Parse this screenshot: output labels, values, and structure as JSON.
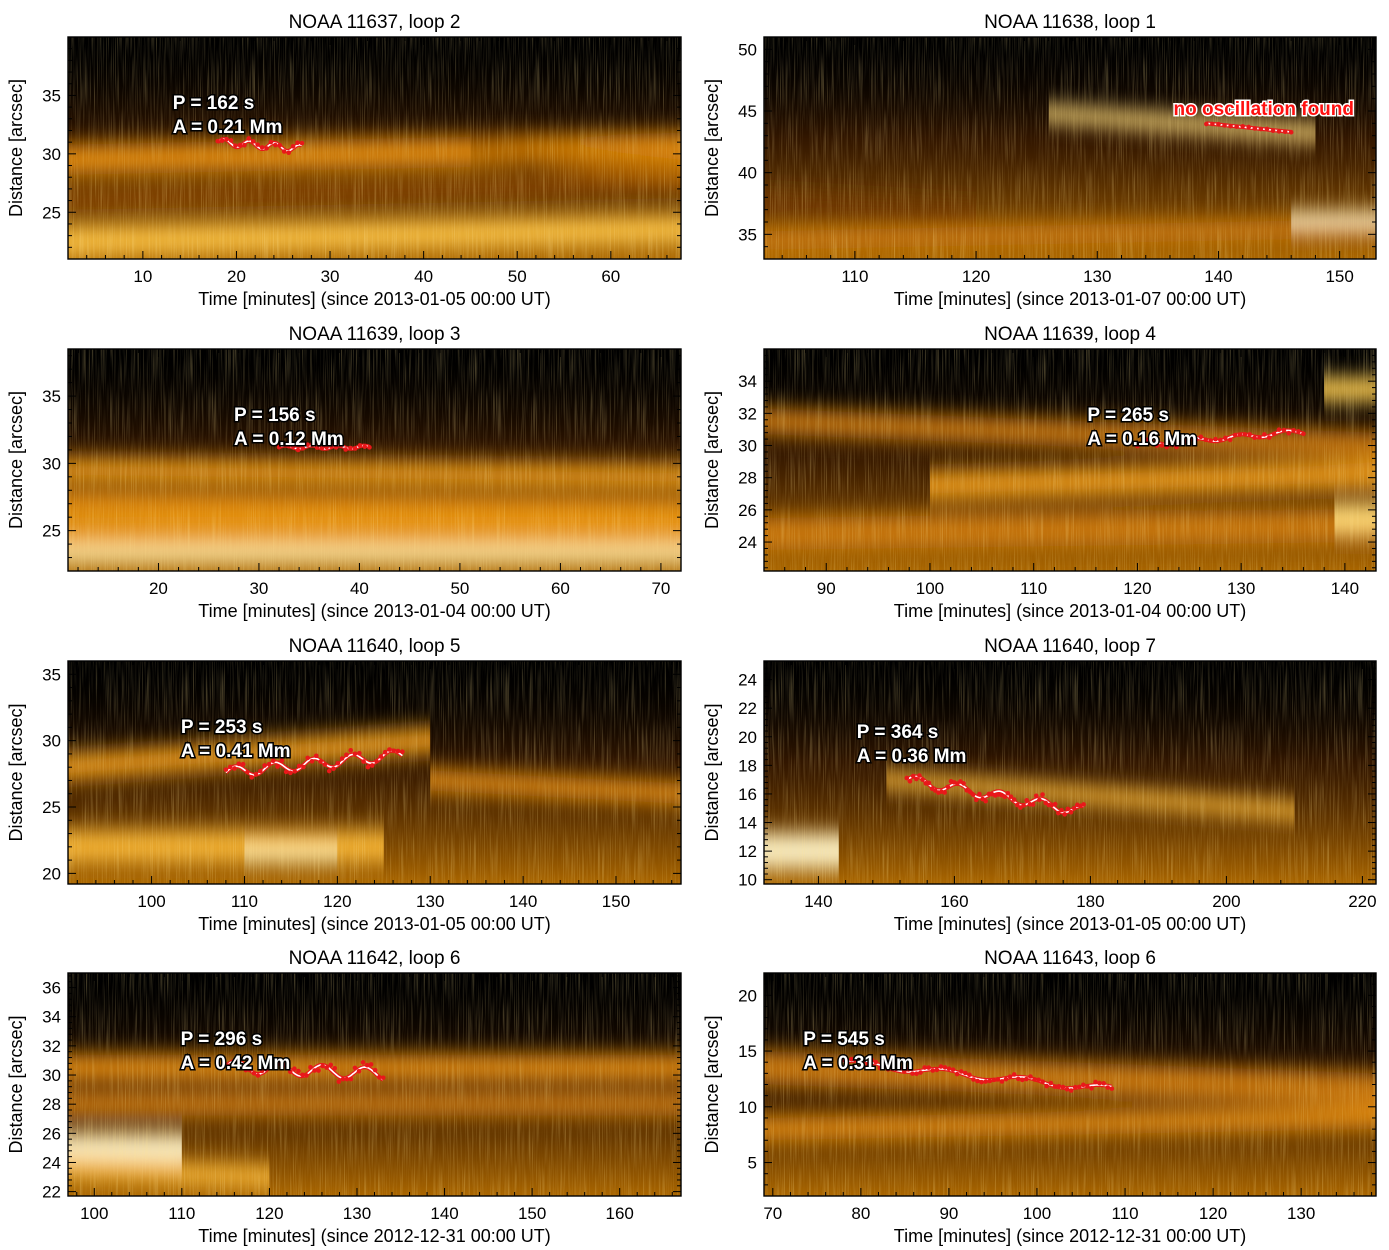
{
  "chart_data": [
    {
      "type": "time-distance map",
      "title": "NOAA 11637, loop 2",
      "xlabel": "Time [minutes] (since 2013-01-05 00:00 UT)",
      "ylabel": "Distance [arcsec]",
      "xlim": [
        2,
        67.5
      ],
      "ylim": [
        21,
        40
      ],
      "xticks": [
        10,
        20,
        30,
        40,
        50,
        60
      ],
      "yticks": [
        25,
        30,
        35
      ],
      "annotation": [
        "P =  162 s",
        "A = 0.21 Mm"
      ],
      "fit": {
        "t0": 18,
        "t1": 27,
        "y0": 31.0,
        "slope": -0.06,
        "amplitude": 0.3,
        "period_min": 2.7
      },
      "bands": [
        {
          "y0": 29.5,
          "y1": 30.5,
          "width": 2.6,
          "intensity": 0.55
        },
        {
          "y0": 22.5,
          "y1": 23.5,
          "width": 2.5,
          "intensity": 0.75
        },
        {
          "y0": 26,
          "y1": 27.5,
          "width": 2.0,
          "intensity": 0.35
        },
        {
          "y0": 30.5,
          "y1": 28.5,
          "width": 2.0,
          "intensity": 0.45,
          "x0": 45,
          "x1": 67.5
        }
      ]
    },
    {
      "type": "time-distance map",
      "title": "NOAA 11638, loop 1",
      "xlabel": "Time [minutes] (since 2013-01-07 00:00 UT)",
      "ylabel": "Distance [arcsec]",
      "xlim": [
        102.5,
        153
      ],
      "ylim": [
        33,
        51
      ],
      "xticks": [
        110,
        120,
        130,
        140,
        150
      ],
      "yticks": [
        35,
        40,
        45,
        50
      ],
      "annotation_red": "no oscillation found",
      "fit": {
        "t0": 139,
        "t1": 146,
        "y0": 44.0,
        "slope": -0.1,
        "amplitude": 0.0,
        "period_min": 3
      },
      "bands": [
        {
          "y0": 44.8,
          "y1": 43.2,
          "width": 1.3,
          "intensity": 0.85,
          "x0": 126,
          "x1": 148
        },
        {
          "y0": 34.5,
          "y1": 35.5,
          "width": 1.6,
          "intensity": 0.5
        },
        {
          "y0": 37.5,
          "y1": 36.5,
          "width": 1.5,
          "intensity": 0.3,
          "x0": 102.5,
          "x1": 120
        },
        {
          "y0": 36.2,
          "y1": 36.2,
          "width": 1.2,
          "intensity": 0.95,
          "x0": 146,
          "x1": 153
        }
      ]
    },
    {
      "type": "time-distance map",
      "title": "NOAA 11639, loop 3",
      "xlabel": "Time [minutes] (since 2013-01-04 00:00 UT)",
      "ylabel": "Distance [arcsec]",
      "xlim": [
        11,
        72
      ],
      "ylim": [
        22,
        38.5
      ],
      "xticks": [
        20,
        30,
        40,
        50,
        60,
        70
      ],
      "yticks": [
        25,
        30,
        35
      ],
      "annotation": [
        "P =  156 s",
        "A = 0.12 Mm"
      ],
      "fit": {
        "t0": 32,
        "t1": 41,
        "y0": 31.2,
        "slope": 0.0,
        "amplitude": 0.12,
        "period_min": 2.6
      },
      "bands": [
        {
          "y0": 29.5,
          "y1": 29.0,
          "width": 1.8,
          "intensity": 0.6
        },
        {
          "y0": 27.0,
          "y1": 26.5,
          "width": 1.8,
          "intensity": 0.55
        },
        {
          "y0": 23.3,
          "y1": 23.3,
          "width": 1.6,
          "intensity": 0.9
        },
        {
          "y0": 25.0,
          "y1": 25.0,
          "width": 2.0,
          "intensity": 0.6
        }
      ]
    },
    {
      "type": "time-distance map",
      "title": "NOAA 11639, loop 4",
      "xlabel": "Time [minutes] (since 2013-01-04 00:00 UT)",
      "ylabel": "Distance [arcsec]",
      "xlim": [
        84,
        143
      ],
      "ylim": [
        22.2,
        36
      ],
      "xticks": [
        90,
        100,
        110,
        120,
        130,
        140
      ],
      "yticks": [
        24,
        26,
        28,
        30,
        32,
        34
      ],
      "annotation": [
        "P =  265 s",
        "A = 0.16 Mm"
      ],
      "fit": {
        "t0": 120,
        "t1": 136,
        "y0": 30.0,
        "slope": 0.055,
        "amplitude": 0.15,
        "period_min": 4.4
      },
      "bands": [
        {
          "y0": 31.5,
          "y1": 30.0,
          "width": 1.6,
          "intensity": 0.5,
          "x0": 84,
          "x1": 143
        },
        {
          "y0": 27.5,
          "y1": 28.2,
          "width": 1.8,
          "intensity": 0.6,
          "x0": 100,
          "x1": 143
        },
        {
          "y0": 24.5,
          "y1": 25.0,
          "width": 2.0,
          "intensity": 0.5
        },
        {
          "y0": 33.5,
          "y1": 33.5,
          "width": 1.5,
          "intensity": 0.8,
          "x0": 138,
          "x1": 143
        },
        {
          "y0": 25.5,
          "y1": 25.5,
          "width": 1.8,
          "intensity": 0.85,
          "x0": 139,
          "x1": 143
        }
      ]
    },
    {
      "type": "time-distance map",
      "title": "NOAA 11640, loop 5",
      "xlabel": "Time [minutes] (since 2013-01-05 00:00 UT)",
      "ylabel": "Distance [arcsec]",
      "xlim": [
        91,
        157
      ],
      "ylim": [
        19.2,
        36
      ],
      "xticks": [
        100,
        110,
        120,
        130,
        140,
        150
      ],
      "yticks": [
        20,
        25,
        30,
        35
      ],
      "annotation": [
        "P =  253 s",
        "A = 0.41 Mm"
      ],
      "fit": {
        "t0": 108,
        "t1": 127,
        "y0": 27.6,
        "slope": 0.07,
        "amplitude": 0.4,
        "period_min": 4.2
      },
      "bands": [
        {
          "y0": 28.0,
          "y1": 30.0,
          "width": 2.0,
          "intensity": 0.6,
          "x0": 91,
          "x1": 130
        },
        {
          "y0": 27.0,
          "y1": 26.0,
          "width": 1.6,
          "intensity": 0.55,
          "x0": 130,
          "x1": 157
        },
        {
          "y0": 22.0,
          "y1": 22.0,
          "width": 2.5,
          "intensity": 0.7,
          "x0": 91,
          "x1": 125
        },
        {
          "y0": 21.5,
          "y1": 21.5,
          "width": 1.5,
          "intensity": 0.9,
          "x0": 110,
          "x1": 120
        }
      ]
    },
    {
      "type": "time-distance map",
      "title": "NOAA 11640, loop 7",
      "xlabel": "Time [minutes] (since 2013-01-05 00:00 UT)",
      "ylabel": "Distance [arcsec]",
      "xlim": [
        132,
        222
      ],
      "ylim": [
        9.7,
        25.3
      ],
      "xticks": [
        140,
        160,
        180,
        200,
        220
      ],
      "yticks": [
        10,
        12,
        14,
        16,
        18,
        20,
        22,
        24
      ],
      "annotation": [
        "P =  364 s",
        "A = 0.36 Mm"
      ],
      "fit": {
        "t0": 153,
        "t1": 179,
        "y0": 17.0,
        "slope": -0.085,
        "amplitude": 0.35,
        "period_min": 6.1
      },
      "bands": [
        {
          "y0": 17.0,
          "y1": 14.8,
          "width": 1.2,
          "intensity": 0.7,
          "x0": 150,
          "x1": 210
        },
        {
          "y0": 12.0,
          "y1": 12.0,
          "width": 2.5,
          "intensity": 0.95,
          "x0": 132,
          "x1": 143
        }
      ]
    },
    {
      "type": "time-distance map",
      "title": "NOAA 11642, loop 6",
      "xlabel": "Time [minutes] (since 2012-12-31 00:00 UT)",
      "ylabel": "Distance [arcsec]",
      "xlim": [
        97,
        167
      ],
      "ylim": [
        21.7,
        37
      ],
      "xticks": [
        100,
        110,
        120,
        130,
        140,
        150,
        160
      ],
      "yticks": [
        22,
        24,
        26,
        28,
        30,
        32,
        34,
        36
      ],
      "annotation": [
        "P =  296 s",
        "A = 0.42 Mm"
      ],
      "fit": {
        "t0": 115,
        "t1": 133,
        "y0": 30.6,
        "slope": -0.03,
        "amplitude": 0.42,
        "period_min": 4.9
      },
      "bands": [
        {
          "y0": 30.5,
          "y1": 30.5,
          "width": 1.8,
          "intensity": 0.55
        },
        {
          "y0": 28.0,
          "y1": 28.0,
          "width": 1.6,
          "intensity": 0.5
        },
        {
          "y0": 25.0,
          "y1": 25.0,
          "width": 2.0,
          "intensity": 0.95,
          "x0": 97,
          "x1": 110
        },
        {
          "y0": 23.5,
          "y1": 23.0,
          "width": 1.5,
          "intensity": 0.7,
          "x0": 97,
          "x1": 120
        }
      ]
    },
    {
      "type": "time-distance map",
      "title": "NOAA 11643, loop 6",
      "xlabel": "Time [minutes] (since 2012-12-31 00:00 UT)",
      "ylabel": "Distance [arcsec]",
      "xlim": [
        69,
        138.5
      ],
      "ylim": [
        2,
        22
      ],
      "xticks": [
        70,
        80,
        90,
        100,
        110,
        120,
        130
      ],
      "yticks": [
        5,
        10,
        15,
        20
      ],
      "annotation": [
        "P =  545 s",
        "A = 0.31 Mm"
      ],
      "fit": {
        "t0": 78,
        "t1": 108.5,
        "y0": 14.0,
        "slope": -0.08,
        "amplitude": 0.3,
        "period_min": 9.1
      },
      "bands": [
        {
          "y0": 13.5,
          "y1": 11.5,
          "width": 3.0,
          "intensity": 0.5
        },
        {
          "y0": 8.0,
          "y1": 9.0,
          "width": 2.0,
          "intensity": 0.55
        }
      ]
    }
  ],
  "colors": {
    "fit_line": "#ffffff",
    "data_points": "#e8181a",
    "no_oscillation_text": "#ff1010",
    "annotation_text": "#ffffff"
  }
}
